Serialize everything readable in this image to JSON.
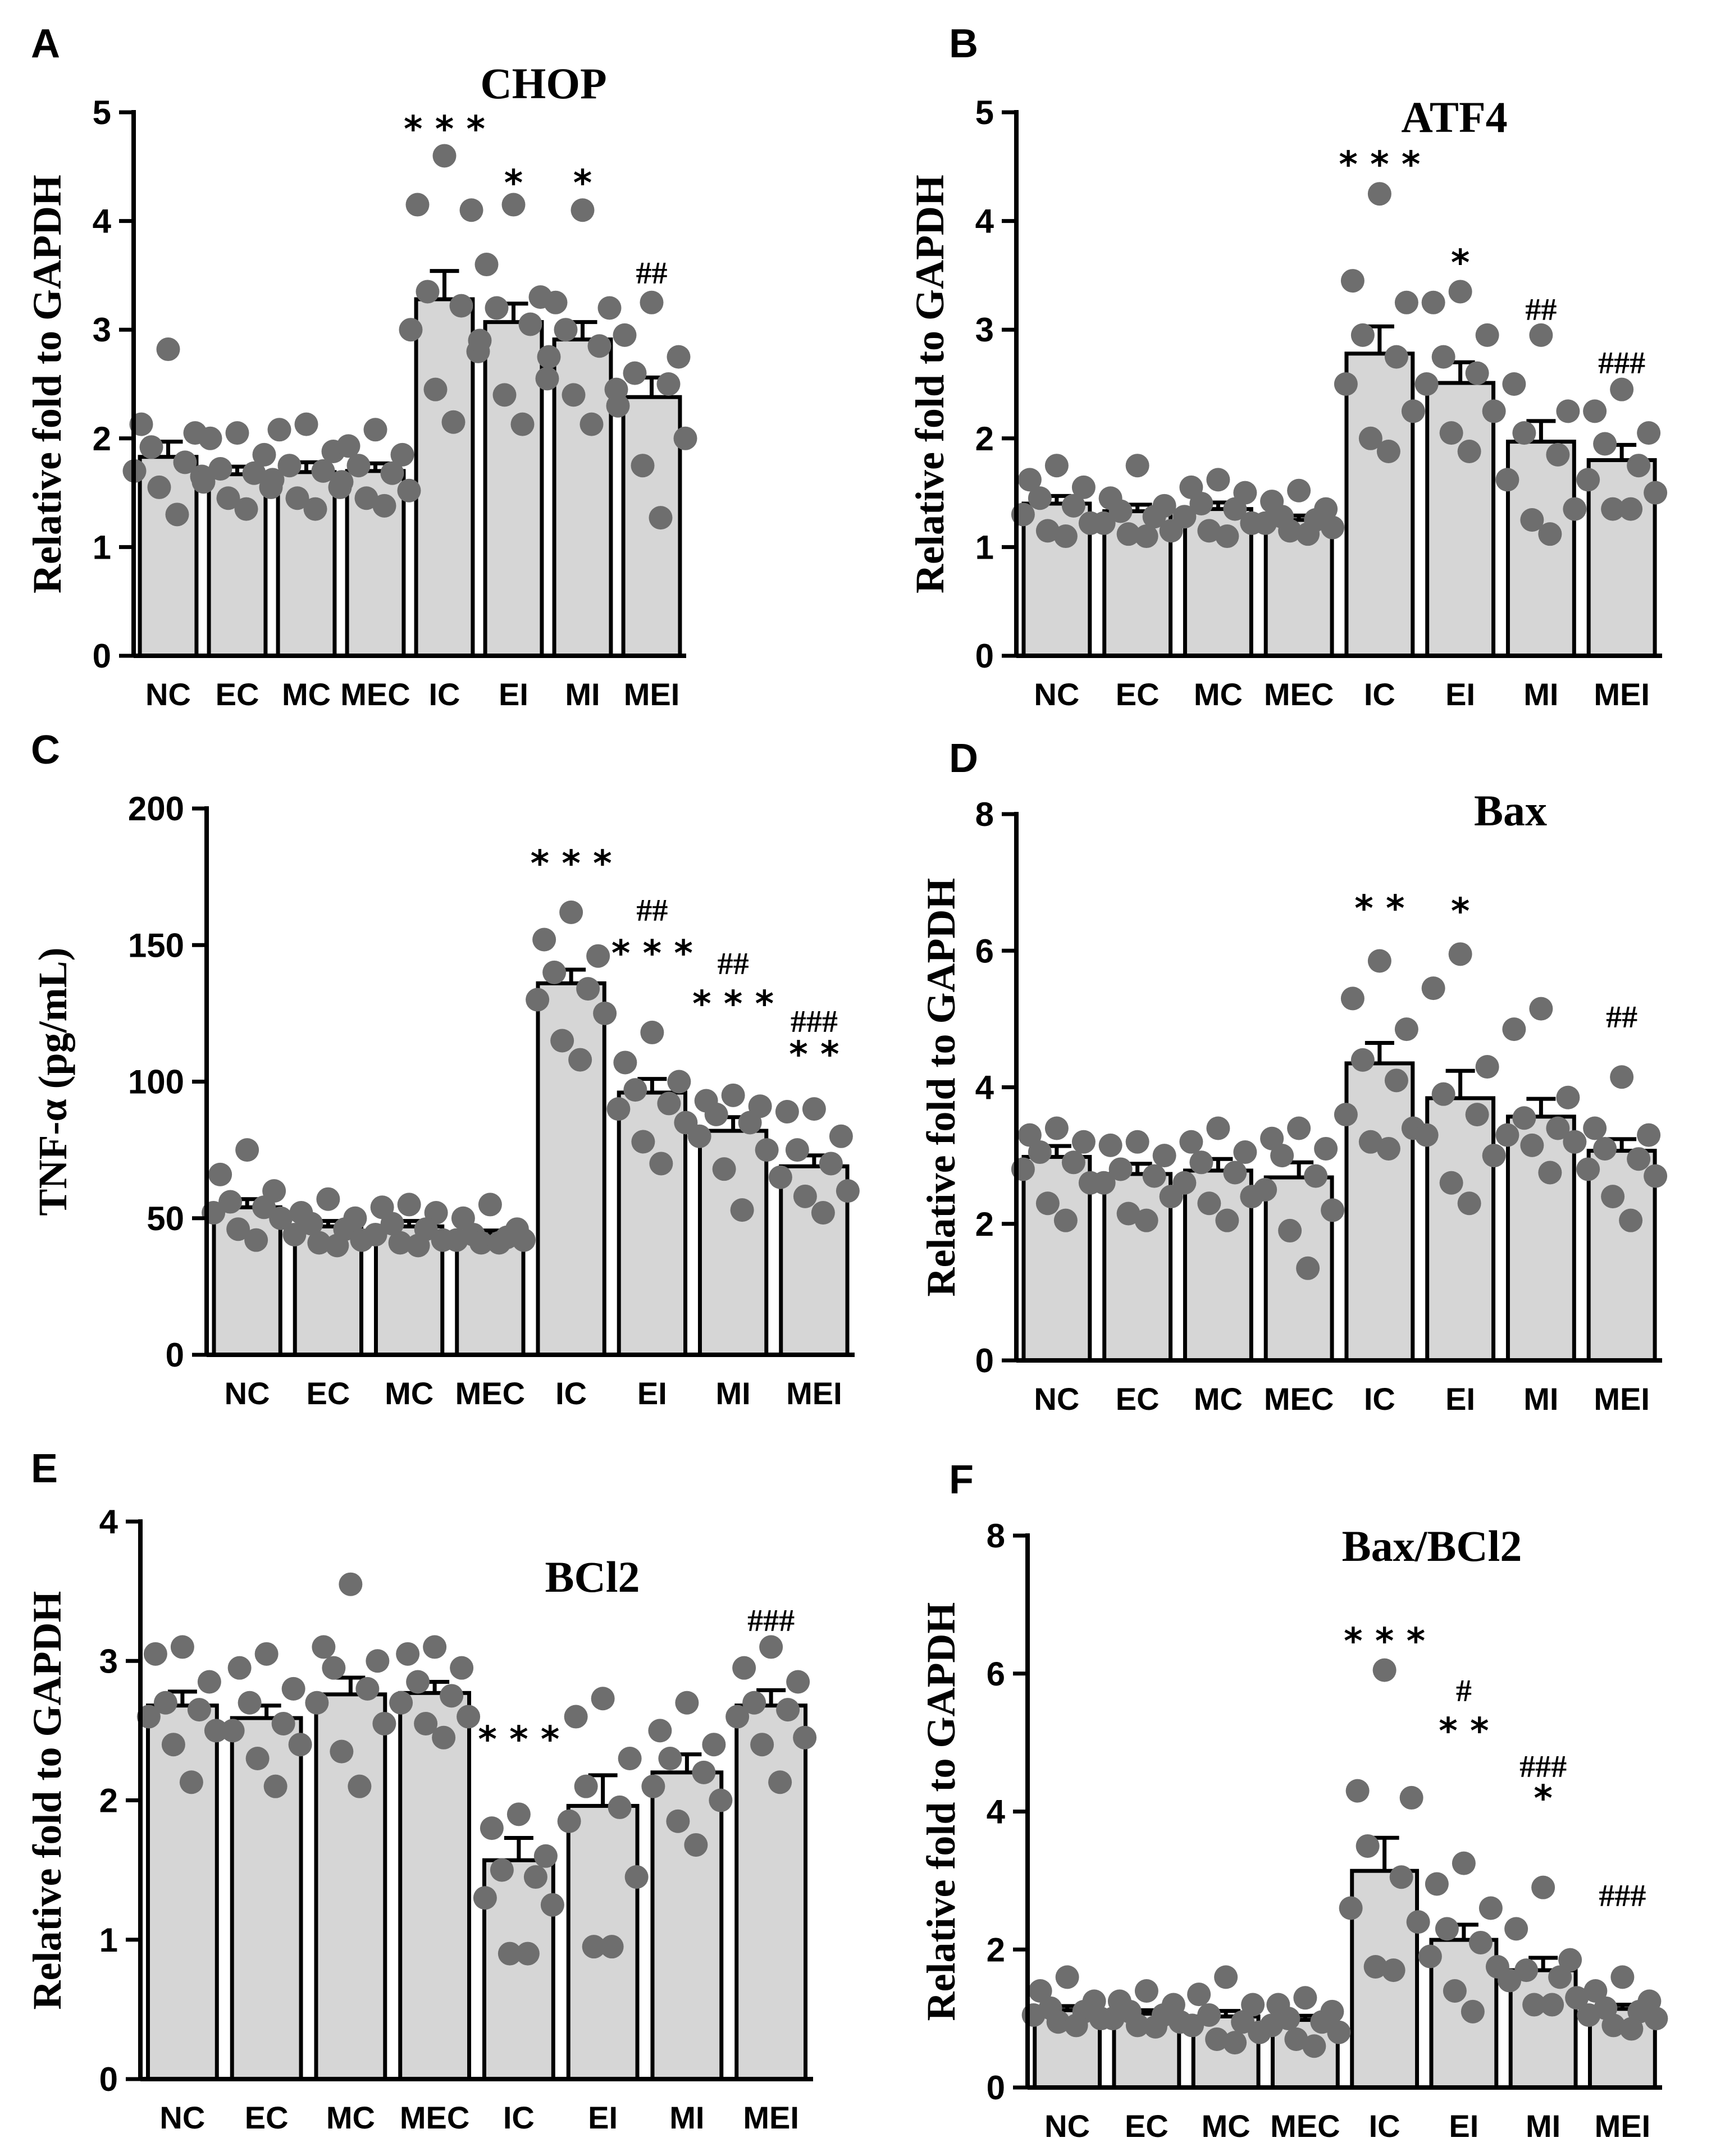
{
  "chart_data": [
    {
      "panel": "A",
      "type": "bar",
      "title": "CHOP",
      "ylabel": "Relative fold to GAPDH",
      "categories": [
        "NC",
        "EC",
        "MC",
        "MEC",
        "IC",
        "EI",
        "MI",
        "MEI"
      ],
      "ylim": [
        0,
        5
      ],
      "yticks": [
        0,
        1,
        2,
        3,
        4,
        5
      ],
      "means": [
        1.83,
        1.67,
        1.69,
        1.7,
        3.28,
        3.07,
        2.91,
        2.38
      ],
      "sem": [
        0.14,
        0.07,
        0.09,
        0.07,
        0.26,
        0.17,
        0.16,
        0.18
      ],
      "points": [
        [
          2.82,
          2.13,
          2.05,
          1.92,
          1.78,
          1.7,
          1.65,
          1.55,
          1.3
        ],
        [
          2.05,
          2.0,
          1.85,
          1.72,
          1.68,
          1.6,
          1.55,
          1.45,
          1.35
        ],
        [
          2.13,
          2.08,
          1.88,
          1.75,
          1.7,
          1.62,
          1.55,
          1.45,
          1.35
        ],
        [
          2.08,
          1.93,
          1.85,
          1.75,
          1.68,
          1.6,
          1.52,
          1.45,
          1.38
        ],
        [
          4.6,
          4.15,
          4.1,
          3.35,
          3.22,
          3.0,
          2.8,
          2.45,
          2.15
        ],
        [
          4.15,
          3.6,
          3.3,
          3.2,
          3.05,
          2.9,
          2.55,
          2.4,
          2.13
        ],
        [
          4.1,
          3.25,
          3.2,
          3.0,
          2.85,
          2.75,
          2.45,
          2.4,
          2.13
        ],
        [
          3.25,
          2.95,
          2.75,
          2.6,
          2.5,
          2.3,
          2.0,
          1.75,
          1.27
        ]
      ],
      "stars": [
        "",
        "",
        "",
        "",
        "***",
        "*",
        "*",
        ""
      ],
      "hashes": [
        "",
        "",
        "",
        "",
        "",
        "",
        "",
        "##"
      ]
    },
    {
      "panel": "B",
      "type": "bar",
      "title": "ATF4",
      "ylabel": "Relative fold to GAPDH",
      "categories": [
        "NC",
        "EC",
        "MC",
        "MEC",
        "IC",
        "EI",
        "MI",
        "MEI"
      ],
      "ylim": [
        0,
        5
      ],
      "yticks": [
        0,
        1,
        2,
        3,
        4,
        5
      ],
      "means": [
        1.4,
        1.33,
        1.35,
        1.25,
        2.78,
        2.51,
        1.97,
        1.8
      ],
      "sem": [
        0.07,
        0.06,
        0.06,
        0.04,
        0.25,
        0.19,
        0.19,
        0.14
      ],
      "points": [
        [
          1.75,
          1.62,
          1.55,
          1.45,
          1.38,
          1.3,
          1.22,
          1.15,
          1.1
        ],
        [
          1.75,
          1.45,
          1.38,
          1.33,
          1.28,
          1.22,
          1.15,
          1.12,
          1.1
        ],
        [
          1.62,
          1.55,
          1.5,
          1.4,
          1.35,
          1.28,
          1.22,
          1.15,
          1.1
        ],
        [
          1.52,
          1.42,
          1.35,
          1.28,
          1.25,
          1.22,
          1.18,
          1.15,
          1.12
        ],
        [
          4.25,
          3.45,
          3.25,
          2.95,
          2.75,
          2.5,
          2.25,
          2.0,
          1.88
        ],
        [
          3.35,
          3.25,
          2.95,
          2.75,
          2.6,
          2.5,
          2.25,
          2.05,
          1.88
        ],
        [
          2.95,
          2.5,
          2.25,
          2.05,
          1.85,
          1.62,
          1.35,
          1.25,
          1.12
        ],
        [
          2.45,
          2.25,
          2.05,
          1.95,
          1.75,
          1.62,
          1.5,
          1.35,
          1.35
        ]
      ],
      "stars": [
        "",
        "",
        "",
        "",
        "***",
        "*",
        "",
        ""
      ],
      "hashes": [
        "",
        "",
        "",
        "",
        "",
        "",
        "##",
        "###"
      ]
    },
    {
      "panel": "C",
      "type": "bar",
      "title": "",
      "ylabel": "TNF-α (pg/mL)",
      "categories": [
        "NC",
        "EC",
        "MC",
        "MEC",
        "IC",
        "EI",
        "MI",
        "MEI"
      ],
      "ylim": [
        0,
        200
      ],
      "yticks": [
        0,
        50,
        100,
        150,
        200
      ],
      "means": [
        54,
        47,
        47,
        44,
        136,
        96,
        82,
        69
      ],
      "sem": [
        3,
        2,
        2,
        1.5,
        5,
        5,
        5,
        4
      ],
      "points": [
        [
          75,
          66,
          60,
          56,
          54,
          52,
          50,
          46,
          42
        ],
        [
          57,
          52,
          50,
          48,
          46,
          44,
          42,
          41,
          40
        ],
        [
          55,
          54,
          52,
          48,
          46,
          44,
          42,
          41,
          40
        ],
        [
          55,
          50,
          46,
          44,
          43,
          42,
          42,
          41,
          41
        ],
        [
          162,
          152,
          146,
          140,
          134,
          130,
          125,
          115,
          108
        ],
        [
          118,
          107,
          100,
          97,
          92,
          90,
          85,
          78,
          70
        ],
        [
          95,
          93,
          91,
          88,
          85,
          80,
          75,
          68,
          53
        ],
        [
          90,
          89,
          80,
          75,
          70,
          65,
          60,
          58,
          52
        ]
      ],
      "stars": [
        "",
        "",
        "",
        "",
        "***",
        "***",
        "***",
        "**"
      ],
      "hashes": [
        "",
        "",
        "",
        "",
        "",
        "##",
        "##",
        "###"
      ]
    },
    {
      "panel": "D",
      "type": "bar",
      "title": "Bax",
      "ylabel": "Relative fold to GAPDH",
      "categories": [
        "NC",
        "EC",
        "MC",
        "MEC",
        "IC",
        "EI",
        "MI",
        "MEI"
      ],
      "ylim": [
        0,
        8
      ],
      "yticks": [
        0,
        2,
        4,
        6,
        8
      ],
      "means": [
        2.98,
        2.73,
        2.78,
        2.68,
        4.35,
        3.84,
        3.57,
        3.07
      ],
      "sem": [
        0.16,
        0.15,
        0.17,
        0.22,
        0.3,
        0.4,
        0.26,
        0.17
      ],
      "points": [
        [
          3.4,
          3.3,
          3.2,
          3.05,
          2.9,
          2.8,
          2.6,
          2.3,
          2.05
        ],
        [
          3.2,
          3.15,
          3.0,
          2.8,
          2.7,
          2.6,
          2.4,
          2.15,
          2.05
        ],
        [
          3.4,
          3.2,
          3.05,
          2.9,
          2.75,
          2.6,
          2.4,
          2.3,
          2.05
        ],
        [
          3.4,
          3.25,
          3.1,
          3.0,
          2.7,
          2.5,
          2.2,
          1.9,
          1.35
        ],
        [
          5.85,
          5.3,
          4.85,
          4.4,
          4.1,
          3.6,
          3.4,
          3.2,
          3.1
        ],
        [
          5.95,
          5.45,
          4.3,
          3.9,
          3.6,
          3.3,
          3.0,
          2.6,
          2.3
        ],
        [
          5.15,
          4.85,
          3.85,
          3.55,
          3.4,
          3.3,
          3.2,
          3.15,
          2.75
        ],
        [
          4.15,
          3.4,
          3.3,
          3.1,
          2.95,
          2.8,
          2.7,
          2.4,
          2.05
        ]
      ],
      "stars": [
        "",
        "",
        "",
        "",
        "**",
        "*",
        "",
        ""
      ],
      "hashes": [
        "",
        "",
        "",
        "",
        "",
        "",
        "",
        "##"
      ]
    },
    {
      "panel": "E",
      "type": "bar",
      "title": "BCl2",
      "ylabel": "Relative fold to GAPDH",
      "categories": [
        "NC",
        "EC",
        "MC",
        "MEC",
        "IC",
        "EI",
        "MI",
        "MEI"
      ],
      "ylim": [
        0,
        4
      ],
      "yticks": [
        0,
        1,
        2,
        3,
        4
      ],
      "means": [
        2.68,
        2.59,
        2.76,
        2.77,
        1.57,
        1.96,
        2.2,
        2.68
      ],
      "sem": [
        0.1,
        0.09,
        0.12,
        0.08,
        0.16,
        0.22,
        0.13,
        0.11
      ],
      "points": [
        [
          3.1,
          3.05,
          2.85,
          2.7,
          2.65,
          2.6,
          2.5,
          2.4,
          2.13
        ],
        [
          3.05,
          2.95,
          2.8,
          2.7,
          2.55,
          2.5,
          2.4,
          2.3,
          2.1
        ],
        [
          3.55,
          3.1,
          3.0,
          2.95,
          2.8,
          2.7,
          2.55,
          2.35,
          2.1
        ],
        [
          3.1,
          3.05,
          2.95,
          2.85,
          2.75,
          2.7,
          2.6,
          2.55,
          2.45
        ],
        [
          1.9,
          1.8,
          1.6,
          1.5,
          1.45,
          1.3,
          1.25,
          0.9,
          0.9
        ],
        [
          2.73,
          2.6,
          2.3,
          2.1,
          1.95,
          1.85,
          1.45,
          0.95,
          0.95
        ],
        [
          2.7,
          2.5,
          2.4,
          2.3,
          2.2,
          2.1,
          2.0,
          1.85,
          1.68
        ],
        [
          3.1,
          2.95,
          2.85,
          2.7,
          2.65,
          2.6,
          2.45,
          2.4,
          2.13
        ]
      ],
      "stars": [
        "",
        "",
        "",
        "",
        "***",
        "",
        "",
        ""
      ],
      "hashes": [
        "",
        "",
        "",
        "",
        "",
        "",
        "",
        "###"
      ]
    },
    {
      "panel": "F",
      "type": "bar",
      "title": "Bax/BCl2",
      "ylabel": "Relative fold to GAPDH",
      "categories": [
        "NC",
        "EC",
        "MC",
        "MEC",
        "IC",
        "EI",
        "MI",
        "MEI"
      ],
      "ylim": [
        0,
        8
      ],
      "yticks": [
        0,
        2,
        4,
        6,
        8
      ],
      "means": [
        1.12,
        1.07,
        1.03,
        0.98,
        3.14,
        2.14,
        1.7,
        1.14
      ],
      "sem": [
        0.06,
        0.05,
        0.08,
        0.06,
        0.48,
        0.22,
        0.18,
        0.06
      ],
      "points": [
        [
          1.6,
          1.4,
          1.25,
          1.15,
          1.1,
          1.05,
          1.0,
          0.95,
          0.9
        ],
        [
          1.4,
          1.25,
          1.2,
          1.1,
          1.05,
          1.0,
          0.95,
          0.9,
          0.88
        ],
        [
          1.6,
          1.35,
          1.2,
          1.05,
          0.95,
          0.9,
          0.8,
          0.7,
          0.65
        ],
        [
          1.3,
          1.2,
          1.1,
          1.0,
          0.95,
          0.9,
          0.8,
          0.7,
          0.6
        ],
        [
          6.05,
          4.3,
          4.2,
          3.5,
          3.05,
          2.6,
          2.4,
          1.75,
          1.7
        ],
        [
          3.25,
          2.95,
          2.6,
          2.3,
          2.1,
          1.9,
          1.75,
          1.4,
          1.1
        ],
        [
          2.9,
          2.3,
          1.85,
          1.7,
          1.6,
          1.55,
          1.3,
          1.2,
          1.2
        ],
        [
          1.6,
          1.4,
          1.25,
          1.15,
          1.1,
          1.05,
          1.0,
          0.9,
          0.85
        ]
      ],
      "stars": [
        "",
        "",
        "",
        "",
        "***",
        "**",
        "*",
        ""
      ],
      "hashes": [
        "",
        "",
        "",
        "",
        "",
        "#",
        "###",
        "###"
      ]
    }
  ]
}
